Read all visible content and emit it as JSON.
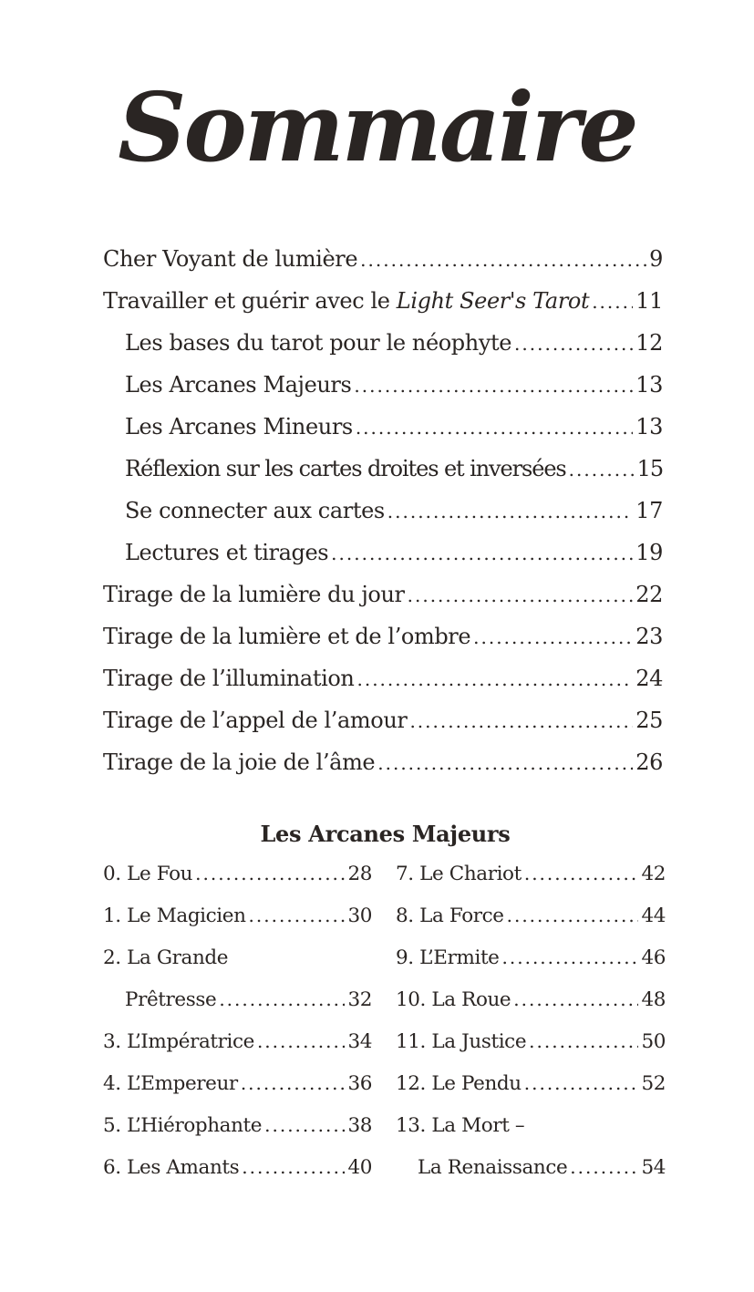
{
  "title": "Sommaire",
  "toc": [
    {
      "label": "Cher Voyant de lumière",
      "page": "9",
      "level": 1
    },
    {
      "label": "Travailler et guérir avec le ",
      "label_italic": "Light Seer's Tarot",
      "page": "11",
      "level": 1
    },
    {
      "label": "Les bases du tarot pour le néophyte",
      "page": "12",
      "level": 2
    },
    {
      "label": "Les Arcanes Majeurs",
      "page": "13",
      "level": 2
    },
    {
      "label": "Les Arcanes Mineurs",
      "page": "13",
      "level": 2
    },
    {
      "label": "Réflexion sur les cartes droites et inversées",
      "page": "15",
      "level": 2
    },
    {
      "label": "Se connecter aux cartes",
      "page": "17",
      "level": 2
    },
    {
      "label": "Lectures et tirages",
      "page": "19",
      "level": 2
    },
    {
      "label": "Tirage de la lumière du jour",
      "page": "22",
      "level": 1
    },
    {
      "label": "Tirage de la lumière et de l’ombre",
      "page": "23",
      "level": 1
    },
    {
      "label": "Tirage de l’illumination",
      "page": "24",
      "level": 1
    },
    {
      "label": "Tirage de l’appel de l’amour",
      "page": "25",
      "level": 1
    },
    {
      "label": "Tirage de la joie de l’âme",
      "page": "26",
      "level": 1
    }
  ],
  "major_arcana": {
    "heading": "Les Arcanes Majeurs",
    "left": [
      {
        "label": "0. Le Fou",
        "page": "28"
      },
      {
        "label": "1. Le Magicien",
        "page": "30"
      },
      {
        "label": "2. La Grande",
        "cont": "Prêtresse",
        "page": "32"
      },
      {
        "label": "3. L’Impératrice",
        "page": "34"
      },
      {
        "label": "4. L’Empereur",
        "page": "36"
      },
      {
        "label": "5. L’Hiérophante",
        "page": "38"
      },
      {
        "label": "6. Les Amants",
        "page": "40"
      }
    ],
    "right": [
      {
        "label": "7. Le Chariot",
        "page": "42"
      },
      {
        "label": "8. La Force",
        "page": "44"
      },
      {
        "label": "9. L’Ermite",
        "page": "46"
      },
      {
        "label": "10. La Roue",
        "page": "48"
      },
      {
        "label": "11. La Justice",
        "page": "50"
      },
      {
        "label": "12. Le Pendu",
        "page": "52"
      },
      {
        "label": "13. La Mort –",
        "cont": "La Renaissance",
        "page": "54"
      }
    ]
  }
}
